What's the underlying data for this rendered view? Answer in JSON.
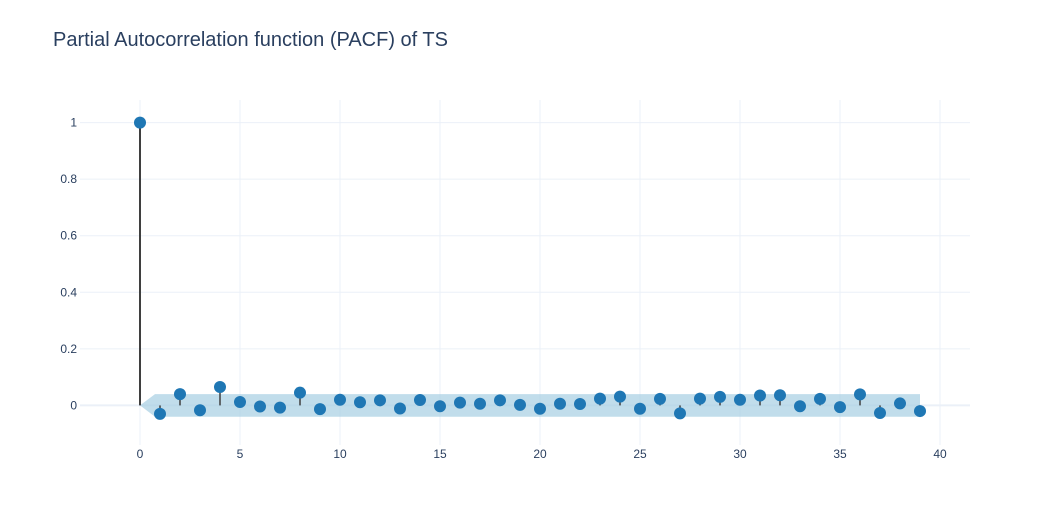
{
  "chart_data": {
    "type": "scatter",
    "title": "Partial Autocorrelation function (PACF) of TS",
    "xlabel": "",
    "ylabel": "",
    "xlim": [
      -3,
      41.5
    ],
    "ylim": [
      -0.14,
      1.08
    ],
    "x_ticks": [
      0,
      5,
      10,
      15,
      20,
      25,
      30,
      35,
      40
    ],
    "y_ticks": [
      0,
      0.2,
      0.4,
      0.6,
      0.8,
      1
    ],
    "y_tick_labels": [
      "0",
      "0.2",
      "0.4",
      "0.6",
      "0.8",
      "1"
    ],
    "grid": true,
    "lags": [
      0,
      1,
      2,
      3,
      4,
      5,
      6,
      7,
      8,
      9,
      10,
      11,
      12,
      13,
      14,
      15,
      16,
      17,
      18,
      19,
      20,
      21,
      22,
      23,
      24,
      25,
      26,
      27,
      28,
      29,
      30,
      31,
      32,
      33,
      34,
      35,
      36,
      37,
      38,
      39
    ],
    "pacf": [
      1.0,
      -0.03,
      0.04,
      -0.017,
      0.065,
      0.012,
      -0.004,
      -0.008,
      0.045,
      -0.013,
      0.02,
      0.011,
      0.018,
      -0.011,
      0.019,
      -0.003,
      0.01,
      0.006,
      0.018,
      0.002,
      -0.012,
      0.006,
      0.005,
      0.024,
      0.031,
      -0.012,
      0.023,
      -0.028,
      0.024,
      0.03,
      0.02,
      0.035,
      0.036,
      -0.003,
      0.023,
      -0.006,
      0.039,
      -0.027,
      0.007,
      -0.02
    ],
    "confidence_band": {
      "upper": 0.04,
      "lower": -0.04,
      "color": "#a6cee3"
    },
    "colors": {
      "marker": "#1f77b4",
      "stem": "#3f3f3f",
      "grid": "#ebf0f8",
      "zeroline": "#ebf0f8",
      "text": "#2a3f5f"
    }
  }
}
